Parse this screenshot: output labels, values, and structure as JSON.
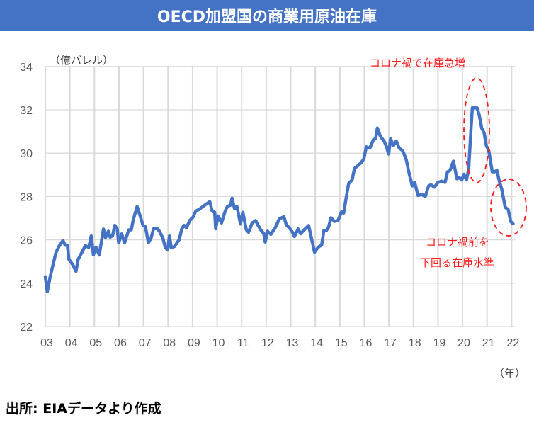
{
  "chart_data": {
    "type": "line",
    "title": "OECD加盟国の商業用原油在庫",
    "ylabel": "（億バレル）",
    "xlabel": "（年）",
    "ylim": [
      22,
      34
    ],
    "yticks": [
      22,
      24,
      26,
      28,
      30,
      32,
      34
    ],
    "xlim": [
      2003,
      2022
    ],
    "xtick_labels": [
      "03",
      "04",
      "05",
      "06",
      "07",
      "08",
      "09",
      "10",
      "11",
      "12",
      "13",
      "14",
      "15",
      "16",
      "17",
      "18",
      "19",
      "20",
      "21",
      "22"
    ],
    "grid": true,
    "series": [
      {
        "name": "OECD商業用原油在庫",
        "color": "#4472C4",
        "points": [
          [
            2003.0,
            24.3
          ],
          [
            2003.08,
            23.6
          ],
          [
            2003.2,
            24.3
          ],
          [
            2003.43,
            25.4
          ],
          [
            2003.56,
            25.7
          ],
          [
            2003.72,
            25.97
          ],
          [
            2003.81,
            25.75
          ],
          [
            2003.9,
            25.75
          ],
          [
            2003.96,
            25.1
          ],
          [
            2004.12,
            24.85
          ],
          [
            2004.25,
            24.55
          ],
          [
            2004.34,
            25.1
          ],
          [
            2004.48,
            25.4
          ],
          [
            2004.63,
            25.73
          ],
          [
            2004.77,
            25.65
          ],
          [
            2004.87,
            26.18
          ],
          [
            2004.96,
            25.3
          ],
          [
            2005.06,
            25.66
          ],
          [
            2005.2,
            25.3
          ],
          [
            2005.37,
            26.5
          ],
          [
            2005.45,
            26.1
          ],
          [
            2005.57,
            26.4
          ],
          [
            2005.64,
            26.12
          ],
          [
            2005.74,
            26.18
          ],
          [
            2005.83,
            26.67
          ],
          [
            2005.93,
            26.5
          ],
          [
            2005.99,
            25.86
          ],
          [
            2006.11,
            26.27
          ],
          [
            2006.23,
            25.86
          ],
          [
            2006.4,
            26.46
          ],
          [
            2006.5,
            26.46
          ],
          [
            2006.59,
            26.95
          ],
          [
            2006.74,
            27.54
          ],
          [
            2006.88,
            27.05
          ],
          [
            2006.98,
            26.67
          ],
          [
            2007.08,
            26.6
          ],
          [
            2007.2,
            25.86
          ],
          [
            2007.31,
            26.08
          ],
          [
            2007.41,
            26.51
          ],
          [
            2007.55,
            26.53
          ],
          [
            2007.65,
            26.4
          ],
          [
            2007.79,
            26.08
          ],
          [
            2007.89,
            25.64
          ],
          [
            2007.98,
            25.53
          ],
          [
            2008.06,
            26.18
          ],
          [
            2008.13,
            25.64
          ],
          [
            2008.27,
            25.7
          ],
          [
            2008.46,
            26.02
          ],
          [
            2008.56,
            26.51
          ],
          [
            2008.65,
            26.67
          ],
          [
            2008.75,
            26.56
          ],
          [
            2008.89,
            26.9
          ],
          [
            2009.02,
            27.05
          ],
          [
            2009.13,
            27.33
          ],
          [
            2009.27,
            27.41
          ],
          [
            2009.42,
            27.54
          ],
          [
            2009.56,
            27.65
          ],
          [
            2009.7,
            27.76
          ],
          [
            2009.8,
            27.33
          ],
          [
            2009.9,
            27.28
          ],
          [
            2009.94,
            26.51
          ],
          [
            2010.04,
            27.1
          ],
          [
            2010.18,
            26.78
          ],
          [
            2010.33,
            27.33
          ],
          [
            2010.42,
            27.54
          ],
          [
            2010.55,
            27.6
          ],
          [
            2010.61,
            27.92
          ],
          [
            2010.71,
            27.43
          ],
          [
            2010.81,
            27.54
          ],
          [
            2010.95,
            26.73
          ],
          [
            2011.05,
            27.27
          ],
          [
            2011.19,
            26.46
          ],
          [
            2011.28,
            26.35
          ],
          [
            2011.43,
            26.78
          ],
          [
            2011.57,
            26.89
          ],
          [
            2011.67,
            26.67
          ],
          [
            2011.81,
            26.4
          ],
          [
            2011.9,
            26.3
          ],
          [
            2011.96,
            25.9
          ],
          [
            2012.05,
            26.4
          ],
          [
            2012.19,
            26.25
          ],
          [
            2012.38,
            26.58
          ],
          [
            2012.53,
            26.96
          ],
          [
            2012.72,
            27.07
          ],
          [
            2012.82,
            26.69
          ],
          [
            2012.96,
            26.53
          ],
          [
            2013.1,
            26.3
          ],
          [
            2013.15,
            26.15
          ],
          [
            2013.3,
            26.5
          ],
          [
            2013.4,
            26.28
          ],
          [
            2013.54,
            26.45
          ],
          [
            2013.73,
            26.66
          ],
          [
            2013.82,
            26.2
          ],
          [
            2013.97,
            25.43
          ],
          [
            2014.11,
            25.65
          ],
          [
            2014.26,
            25.76
          ],
          [
            2014.35,
            26.42
          ],
          [
            2014.45,
            26.42
          ],
          [
            2014.54,
            26.58
          ],
          [
            2014.64,
            27.02
          ],
          [
            2014.78,
            26.85
          ],
          [
            2014.93,
            26.9
          ],
          [
            2015.07,
            27.29
          ],
          [
            2015.16,
            27.24
          ],
          [
            2015.26,
            27.94
          ],
          [
            2015.36,
            28.6
          ],
          [
            2015.5,
            28.76
          ],
          [
            2015.6,
            29.3
          ],
          [
            2015.74,
            29.42
          ],
          [
            2015.88,
            29.58
          ],
          [
            2015.98,
            29.74
          ],
          [
            2016.08,
            30.29
          ],
          [
            2016.22,
            30.23
          ],
          [
            2016.37,
            30.62
          ],
          [
            2016.46,
            30.67
          ],
          [
            2016.53,
            31.16
          ],
          [
            2016.65,
            30.78
          ],
          [
            2016.8,
            30.56
          ],
          [
            2016.89,
            30.34
          ],
          [
            2016.99,
            29.96
          ],
          [
            2017.07,
            30.67
          ],
          [
            2017.18,
            30.34
          ],
          [
            2017.3,
            30.56
          ],
          [
            2017.42,
            30.23
          ],
          [
            2017.56,
            30.12
          ],
          [
            2017.71,
            29.69
          ],
          [
            2017.81,
            29.14
          ],
          [
            2017.95,
            28.49
          ],
          [
            2018.05,
            28.65
          ],
          [
            2018.19,
            28.05
          ],
          [
            2018.33,
            28.1
          ],
          [
            2018.48,
            28.0
          ],
          [
            2018.62,
            28.49
          ],
          [
            2018.71,
            28.54
          ],
          [
            2018.86,
            28.43
          ],
          [
            2019.0,
            28.65
          ],
          [
            2019.15,
            28.71
          ],
          [
            2019.29,
            28.65
          ],
          [
            2019.39,
            29.14
          ],
          [
            2019.49,
            29.2
          ],
          [
            2019.63,
            29.63
          ],
          [
            2019.77,
            28.82
          ],
          [
            2019.87,
            28.87
          ],
          [
            2019.97,
            28.76
          ],
          [
            2020.06,
            29.03
          ],
          [
            2020.16,
            28.76
          ],
          [
            2020.25,
            29.25
          ],
          [
            2020.35,
            31.21
          ],
          [
            2020.4,
            32.09
          ],
          [
            2020.59,
            32.09
          ],
          [
            2020.68,
            31.76
          ],
          [
            2020.78,
            31.16
          ],
          [
            2020.88,
            30.94
          ],
          [
            2020.97,
            30.34
          ],
          [
            2021.07,
            30.12
          ],
          [
            2021.21,
            29.14
          ],
          [
            2021.3,
            29.14
          ],
          [
            2021.4,
            29.2
          ],
          [
            2021.5,
            28.71
          ],
          [
            2021.6,
            28.33
          ],
          [
            2021.74,
            27.5
          ],
          [
            2021.86,
            27.4
          ],
          [
            2021.96,
            26.85
          ],
          [
            2022.06,
            26.74
          ]
        ]
      }
    ],
    "annotations": [
      {
        "text": "コロナ禍で在庫急増",
        "target": [
          2020.5,
          32.1
        ]
      },
      {
        "text": "コロナ禍前を",
        "target": [
          2022.0,
          26.8
        ]
      },
      {
        "text": "下回る在庫水準",
        "target": [
          2022.0,
          26.8
        ]
      }
    ],
    "annotation_color": "#ff1a1a"
  },
  "source": "出所: EIAデータより作成"
}
